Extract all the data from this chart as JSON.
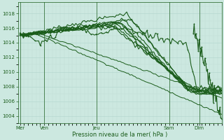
{
  "bg_color": "#cce8e0",
  "plot_bg_color": "#cce8e0",
  "grid_color_major": "#b0d4cc",
  "grid_color_minor": "#c0dcd6",
  "line_color": "#1a5c1a",
  "xlabel": "Pression niveau de la mer( hPa )",
  "ylim": [
    1003,
    1019.5
  ],
  "yticks": [
    1004,
    1006,
    1008,
    1010,
    1012,
    1014,
    1016,
    1018
  ],
  "xtick_labels": [
    "Mer",
    "Ven",
    "Jeu",
    "Sam",
    "Dim"
  ],
  "xtick_positions": [
    0.0,
    0.12,
    0.38,
    0.74,
    0.89
  ],
  "vlines": [
    0.0,
    0.12,
    0.38,
    0.74,
    0.89
  ],
  "num_points": 120
}
